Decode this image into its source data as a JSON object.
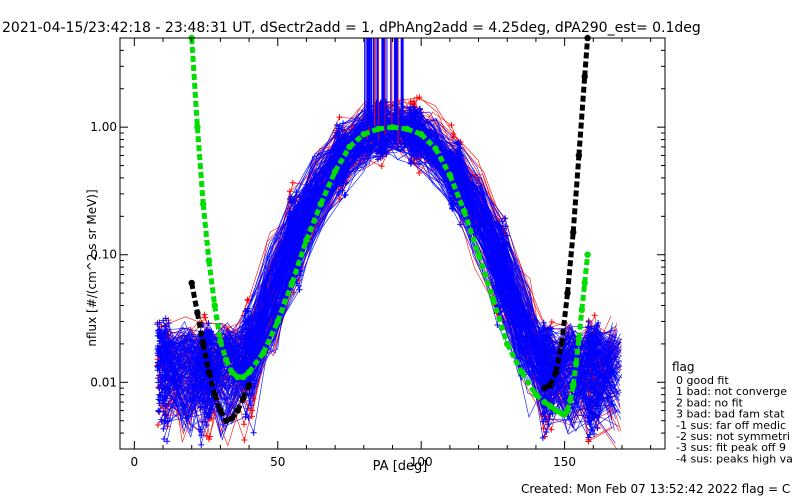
{
  "chart_data": {
    "type": "line",
    "title": "2021-04-15/23:42:18 - 23:48:31 UT, dSectr2add = 1, dPhAng2add = 4.25deg, dPA290_est=   0.1deg",
    "xlabel": "PA [deg]",
    "ylabel": "nflux [#/(cm^2 s sr MeV)]",
    "xlim": [
      -5,
      185
    ],
    "ylim": [
      0.003,
      5.0
    ],
    "yscale": "log",
    "grid": false,
    "x_ticks": [
      0,
      50,
      100,
      150
    ],
    "x_tick_labels": [
      "0",
      "50",
      "100",
      "150"
    ],
    "y_ticks": [
      0.01,
      0.1,
      1.0
    ],
    "y_tick_labels": [
      "0.01",
      "0.10",
      "1.00"
    ],
    "series": [
      {
        "color": "#00dd00",
        "style": "dashed-thick",
        "x": [
          20,
          22,
          24,
          26,
          28,
          30,
          32,
          34,
          36,
          38,
          40,
          45,
          50,
          55,
          60,
          65,
          70,
          75,
          80,
          85,
          90,
          95,
          100,
          105,
          110,
          115,
          120,
          125,
          130,
          135,
          140,
          143,
          145,
          147,
          149,
          150,
          151,
          152,
          153,
          154,
          155,
          156,
          157,
          158
        ],
        "values": [
          5.0,
          1.0,
          0.25,
          0.09,
          0.04,
          0.021,
          0.015,
          0.012,
          0.011,
          0.011,
          0.012,
          0.017,
          0.03,
          0.06,
          0.13,
          0.25,
          0.45,
          0.7,
          0.88,
          0.97,
          1.0,
          0.97,
          0.88,
          0.68,
          0.42,
          0.22,
          0.1,
          0.045,
          0.02,
          0.012,
          0.008,
          0.007,
          0.0065,
          0.006,
          0.0057,
          0.0056,
          0.006,
          0.0072,
          0.0095,
          0.014,
          0.022,
          0.037,
          0.06,
          0.1
        ]
      },
      {
        "color": "#000000",
        "style": "dashed-thick",
        "x": [
          20,
          22,
          24,
          26,
          28,
          30,
          32,
          34,
          36,
          38,
          40,
          143,
          145,
          147,
          149,
          151,
          153,
          155,
          157,
          158
        ],
        "values": [
          0.06,
          0.035,
          0.02,
          0.012,
          0.008,
          0.006,
          0.005,
          0.0052,
          0.006,
          0.0075,
          0.0095,
          0.009,
          0.0095,
          0.012,
          0.02,
          0.05,
          0.15,
          0.6,
          2.5,
          5.0
        ]
      }
    ],
    "legend": {
      "title": "flag",
      "placement": "right",
      "entries": [
        "0 good fit",
        "1 bad: not converge",
        "2 bad: no fit",
        "3 bad: bad fam stat",
        "-1 sus: far off medic",
        "-2 sus: not symmetri",
        "-3 sus: fit peak off 9",
        "-4 sus: peaks high va"
      ]
    },
    "footer": "Created: Mon Feb 07 13:52:42 2022   flag = C"
  }
}
